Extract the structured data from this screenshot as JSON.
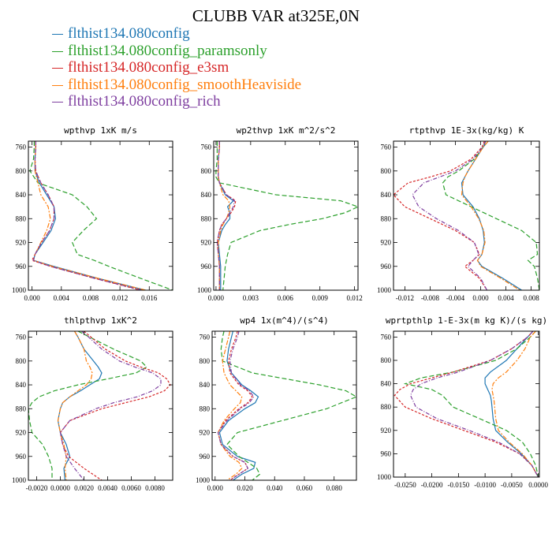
{
  "title": "CLUBB VAR at325E,0N",
  "legend": [
    {
      "label": "flthist134.080config",
      "color": "#1f77b4"
    },
    {
      "label": "flthist134.080config_paramsonly",
      "color": "#2ca02c"
    },
    {
      "label": "flthist134.080config_e3sm",
      "color": "#d62728"
    },
    {
      "label": "flthist134.080config_smoothHeaviside",
      "color": "#ff7f0e"
    },
    {
      "label": "flthist134.080config_rich",
      "color": "#7f3fa0"
    }
  ],
  "chart_data": [
    {
      "type": "line",
      "title": "wpthvp  1xK m/s",
      "xlim": [
        -0.0005,
        0.0192
      ],
      "ylim": [
        1000,
        750
      ],
      "xticks": [
        "0.000",
        "0.004",
        "0.008",
        "0.012",
        "0.016"
      ],
      "yticks": [
        "760",
        "800",
        "840",
        "880",
        "920",
        "960",
        "1000"
      ],
      "y": [
        750,
        760,
        780,
        800,
        820,
        840,
        860,
        880,
        900,
        920,
        940,
        950,
        960,
        980,
        1000
      ],
      "series": [
        {
          "name": "flthist134.080config",
          "values": [
            0.0005,
            0.0005,
            0.0004,
            0.0004,
            0.001,
            0.002,
            0.003,
            0.0032,
            0.0026,
            0.0015,
            0.0004,
            0.0002,
            0.003,
            0.009,
            0.0155
          ]
        },
        {
          "name": "flthist134.080config_paramsonly",
          "values": [
            0.0003,
            0.0003,
            0.0002,
            -0.0003,
            0.0008,
            0.0055,
            0.0075,
            0.0088,
            0.007,
            0.0055,
            0.0062,
            0.0085,
            0.0105,
            0.0148,
            0.0192
          ]
        },
        {
          "name": "flthist134.080config_e3sm",
          "values": [
            0.0005,
            0.0005,
            0.0004,
            0.0005,
            0.0012,
            0.0022,
            0.003,
            0.003,
            0.0024,
            0.0013,
            0.0004,
            0.0,
            0.0025,
            0.0085,
            0.0148
          ]
        },
        {
          "name": "flthist134.080config_smoothHeaviside",
          "values": [
            0.0005,
            0.0005,
            0.0004,
            0.0004,
            0.0008,
            0.0012,
            0.0022,
            0.0025,
            0.002,
            0.0012,
            0.0004,
            0.0002,
            0.0028,
            0.009,
            0.0155
          ]
        },
        {
          "name": "flthist134.080config_rich",
          "values": [
            0.0005,
            0.0005,
            0.0004,
            0.0005,
            0.0012,
            0.0022,
            0.003,
            0.003,
            0.0024,
            0.0013,
            0.0004,
            0.0002,
            0.0025,
            0.0085,
            0.015
          ]
        }
      ]
    },
    {
      "type": "line",
      "title": "wp2thvp  1xK m^2/s^2",
      "xlim": [
        -0.0002,
        0.0123
      ],
      "ylim": [
        1000,
        750
      ],
      "xticks": [
        "0.000",
        "0.003",
        "0.006",
        "0.009",
        "0.012"
      ],
      "yticks": [
        "760",
        "800",
        "840",
        "880",
        "920",
        "960",
        "1000"
      ],
      "y": [
        750,
        760,
        780,
        800,
        810,
        820,
        840,
        850,
        860,
        870,
        880,
        890,
        900,
        920,
        940,
        960,
        980,
        1000
      ],
      "series": [
        {
          "name": "flthist134.080config",
          "values": [
            0.0003,
            0.0003,
            0.0002,
            0.0002,
            0.0002,
            0.0003,
            0.0008,
            0.0015,
            0.001,
            0.0012,
            0.0012,
            0.0008,
            0.0005,
            0.0002,
            0.0003,
            0.0004,
            0.0004,
            0.0004
          ]
        },
        {
          "name": "flthist134.080config_paramsonly",
          "values": [
            0.0001,
            0.0001,
            0.0001,
            0.0,
            0.0,
            0.0003,
            0.0052,
            0.0108,
            0.0123,
            0.0112,
            0.0092,
            0.0063,
            0.0038,
            0.0013,
            0.001,
            0.0008,
            0.0007,
            0.0006
          ]
        },
        {
          "name": "flthist134.080config_e3sm",
          "values": [
            0.0003,
            0.0003,
            0.0002,
            0.0002,
            0.0002,
            0.0003,
            0.0009,
            0.0017,
            0.0016,
            0.0013,
            0.0009,
            0.0005,
            0.0003,
            0.0001,
            0.0002,
            0.0003,
            0.0003,
            0.0003
          ]
        },
        {
          "name": "flthist134.080config_smoothHeaviside",
          "values": [
            0.0003,
            0.0003,
            0.0002,
            0.0002,
            0.0002,
            0.0003,
            0.0006,
            0.0011,
            0.0012,
            0.0011,
            0.0009,
            0.0006,
            0.0004,
            0.0002,
            0.0002,
            0.0003,
            0.0003,
            0.0003
          ]
        },
        {
          "name": "flthist134.080config_rich",
          "values": [
            0.0003,
            0.0003,
            0.0002,
            0.0002,
            0.0002,
            0.0003,
            0.0009,
            0.0016,
            0.0015,
            0.0012,
            0.0009,
            0.0005,
            0.0003,
            0.0001,
            0.0002,
            0.0003,
            0.0003,
            0.0003
          ]
        }
      ]
    },
    {
      "type": "line",
      "title": "rtpthvp  1E-3x(kg/kg) K",
      "xlim": [
        -0.0138,
        0.0093
      ],
      "ylim": [
        1000,
        750
      ],
      "xticks": [
        "-0.012",
        "-0.008",
        "-0.004",
        "0.000",
        "0.004",
        "0.008"
      ],
      "yticks": [
        "760",
        "800",
        "840",
        "880",
        "920",
        "960",
        "1000"
      ],
      "y": [
        750,
        760,
        780,
        800,
        810,
        820,
        840,
        860,
        880,
        900,
        920,
        940,
        950,
        960,
        980,
        1000
      ],
      "series": [
        {
          "name": "flthist134.080config",
          "values": [
            0.0012,
            0.0004,
            -0.0008,
            -0.002,
            -0.0025,
            -0.003,
            -0.0028,
            -0.0012,
            -0.0002,
            0.0004,
            0.0006,
            0.0002,
            -0.0005,
            0.0002,
            0.0035,
            0.0065
          ]
        },
        {
          "name": "flthist134.080config_paramsonly",
          "values": [
            0.0008,
            0.0004,
            -0.001,
            -0.0035,
            -0.0052,
            -0.006,
            -0.0055,
            -0.0015,
            0.0025,
            0.0065,
            0.0088,
            0.009,
            0.0075,
            0.0085,
            0.009,
            0.0093
          ]
        },
        {
          "name": "flthist134.080config_e3sm",
          "values": [
            0.0006,
            0.0002,
            -0.0015,
            -0.0048,
            -0.008,
            -0.0115,
            -0.0138,
            -0.012,
            -0.008,
            -0.004,
            -0.001,
            -0.0002,
            -0.0012,
            -0.0025,
            -0.0002,
            0.001
          ]
        },
        {
          "name": "flthist134.080config_smoothHeaviside",
          "values": [
            0.0012,
            0.0004,
            -0.0008,
            -0.002,
            -0.0025,
            -0.0028,
            -0.003,
            -0.0015,
            -0.0003,
            0.0005,
            0.0007,
            0.0002,
            -0.0005,
            0.0,
            0.0032,
            0.0062
          ]
        },
        {
          "name": "flthist134.080config_rich",
          "values": [
            0.0008,
            0.0003,
            -0.0012,
            -0.004,
            -0.0065,
            -0.009,
            -0.0108,
            -0.0098,
            -0.007,
            -0.0035,
            -0.001,
            -0.0003,
            -0.0012,
            -0.002,
            0.0,
            0.001
          ]
        }
      ]
    },
    {
      "type": "line",
      "title": "thlpthvp  1xK^2",
      "xlim": [
        -0.0027,
        0.0095
      ],
      "ylim": [
        1000,
        750
      ],
      "xticks": [
        "-0.0020",
        "0.0000",
        "0.0020",
        "0.0040",
        "0.0060",
        "0.0080"
      ],
      "yticks": [
        "760",
        "800",
        "840",
        "880",
        "920",
        "960",
        "1000"
      ],
      "y": [
        750,
        760,
        780,
        800,
        810,
        820,
        830,
        840,
        850,
        860,
        870,
        880,
        900,
        920,
        940,
        960,
        980,
        1000
      ],
      "series": [
        {
          "name": "flthist134.080config",
          "values": [
            0.0012,
            0.0015,
            0.002,
            0.0028,
            0.0032,
            0.0035,
            0.0033,
            0.0025,
            0.0017,
            0.0008,
            0.0002,
            0.0,
            -0.0002,
            0.0,
            0.0005,
            0.0008,
            0.0003,
            0.0004
          ]
        },
        {
          "name": "flthist134.080config_paramsonly",
          "values": [
            0.0015,
            0.0025,
            0.0045,
            0.0068,
            0.0073,
            0.0064,
            0.004,
            0.0015,
            -0.0005,
            -0.0018,
            -0.0024,
            -0.0027,
            -0.0026,
            -0.0024,
            -0.0015,
            -0.001,
            -0.0007,
            -0.0007
          ]
        },
        {
          "name": "flthist134.080config_e3sm",
          "values": [
            0.002,
            0.0026,
            0.0038,
            0.0055,
            0.0068,
            0.0083,
            0.009,
            0.0093,
            0.0088,
            0.0075,
            0.0055,
            0.0035,
            0.0008,
            0.0,
            0.0002,
            0.0007,
            0.002,
            0.0035
          ]
        },
        {
          "name": "flthist134.080config_smoothHeaviside",
          "values": [
            0.0012,
            0.0015,
            0.002,
            0.0022,
            0.0025,
            0.0027,
            0.0026,
            0.0022,
            0.0015,
            0.0008,
            0.0002,
            0.0,
            -0.0002,
            0.0,
            0.0003,
            0.0005,
            0.0004,
            0.0005
          ]
        },
        {
          "name": "flthist134.080config_rich",
          "values": [
            0.0018,
            0.0024,
            0.0035,
            0.005,
            0.0063,
            0.0078,
            0.0085,
            0.0085,
            0.0078,
            0.0065,
            0.0045,
            0.003,
            0.0008,
            0.0,
            0.0002,
            0.0005,
            0.0012,
            0.002
          ]
        }
      ]
    },
    {
      "type": "line",
      "title": "wp4  1x(m^4)/(s^4)",
      "xlim": [
        -0.002,
        0.095
      ],
      "ylim": [
        1000,
        750
      ],
      "xticks": [
        "0.000",
        "0.020",
        "0.040",
        "0.060",
        "0.080"
      ],
      "yticks": [
        "760",
        "800",
        "840",
        "880",
        "920",
        "960",
        "1000"
      ],
      "y": [
        750,
        760,
        780,
        800,
        820,
        840,
        850,
        860,
        870,
        880,
        900,
        920,
        940,
        960,
        970,
        980,
        990,
        1000
      ],
      "series": [
        {
          "name": "flthist134.080config",
          "values": [
            0.012,
            0.011,
            0.009,
            0.008,
            0.011,
            0.018,
            0.024,
            0.029,
            0.027,
            0.02,
            0.009,
            0.003,
            0.005,
            0.015,
            0.027,
            0.026,
            0.018,
            0.012
          ]
        },
        {
          "name": "flthist134.080config_paramsonly",
          "values": [
            0.006,
            0.005,
            0.004,
            0.005,
            0.025,
            0.07,
            0.088,
            0.095,
            0.085,
            0.075,
            0.045,
            0.015,
            0.008,
            0.016,
            0.022,
            0.028,
            0.03,
            0.025
          ]
        },
        {
          "name": "flthist134.080config_e3sm",
          "values": [
            0.015,
            0.014,
            0.011,
            0.009,
            0.01,
            0.016,
            0.022,
            0.025,
            0.022,
            0.016,
            0.007,
            0.002,
            0.004,
            0.012,
            0.02,
            0.022,
            0.016,
            0.01
          ]
        },
        {
          "name": "flthist134.080config_smoothHeaviside",
          "values": [
            0.01,
            0.009,
            0.007,
            0.005,
            0.006,
            0.01,
            0.014,
            0.018,
            0.017,
            0.013,
            0.006,
            0.002,
            0.004,
            0.01,
            0.016,
            0.018,
            0.014,
            0.008
          ]
        },
        {
          "name": "flthist134.080config_rich",
          "values": [
            0.016,
            0.015,
            0.012,
            0.01,
            0.011,
            0.017,
            0.023,
            0.026,
            0.023,
            0.017,
            0.008,
            0.002,
            0.004,
            0.012,
            0.02,
            0.022,
            0.016,
            0.01
          ]
        }
      ]
    },
    {
      "type": "line",
      "title": "wprtpthlp  1-E-3x(m kg K)/(s kg)",
      "xlim": [
        -0.0272,
        0.0002
      ],
      "ylim": [
        1000,
        750
      ],
      "xticks": [
        "-0.0250",
        "-0.0200",
        "-0.0150",
        "-0.0100",
        "-0.0050",
        "0.0000"
      ],
      "yticks": [
        "760",
        "800",
        "840",
        "880",
        "920",
        "960",
        "1000"
      ],
      "y": [
        750,
        760,
        780,
        800,
        820,
        830,
        840,
        850,
        860,
        870,
        880,
        900,
        920,
        940,
        960,
        980,
        1000
      ],
      "series": [
        {
          "name": "flthist134.080config",
          "values": [
            -0.001,
            -0.002,
            -0.004,
            -0.006,
            -0.009,
            -0.01,
            -0.01,
            -0.0095,
            -0.009,
            -0.0088,
            -0.0087,
            -0.0085,
            -0.008,
            -0.0058,
            -0.0032,
            -0.0012,
            0.0
          ]
        },
        {
          "name": "flthist134.080config_paramsonly",
          "values": [
            -0.0005,
            -0.0015,
            -0.004,
            -0.008,
            -0.016,
            -0.022,
            -0.025,
            -0.02,
            -0.018,
            -0.017,
            -0.016,
            -0.011,
            -0.006,
            -0.003,
            -0.0015,
            -0.0005,
            0.0
          ]
        },
        {
          "name": "flthist134.080config_e3sm",
          "values": [
            -0.001,
            -0.002,
            -0.005,
            -0.009,
            -0.016,
            -0.02,
            -0.024,
            -0.026,
            -0.027,
            -0.026,
            -0.025,
            -0.02,
            -0.014,
            -0.008,
            -0.0035,
            -0.0012,
            0.0
          ]
        },
        {
          "name": "flthist134.080config_smoothHeaviside",
          "values": [
            -0.0005,
            -0.0015,
            -0.0025,
            -0.004,
            -0.006,
            -0.0075,
            -0.0085,
            -0.0087,
            -0.0085,
            -0.0083,
            -0.0082,
            -0.008,
            -0.0075,
            -0.0055,
            -0.003,
            -0.0012,
            0.0
          ]
        },
        {
          "name": "flthist134.080config_rich",
          "values": [
            -0.001,
            -0.002,
            -0.005,
            -0.009,
            -0.015,
            -0.019,
            -0.022,
            -0.0235,
            -0.024,
            -0.0235,
            -0.023,
            -0.019,
            -0.013,
            -0.0075,
            -0.0035,
            -0.0012,
            0.0
          ]
        }
      ]
    }
  ]
}
